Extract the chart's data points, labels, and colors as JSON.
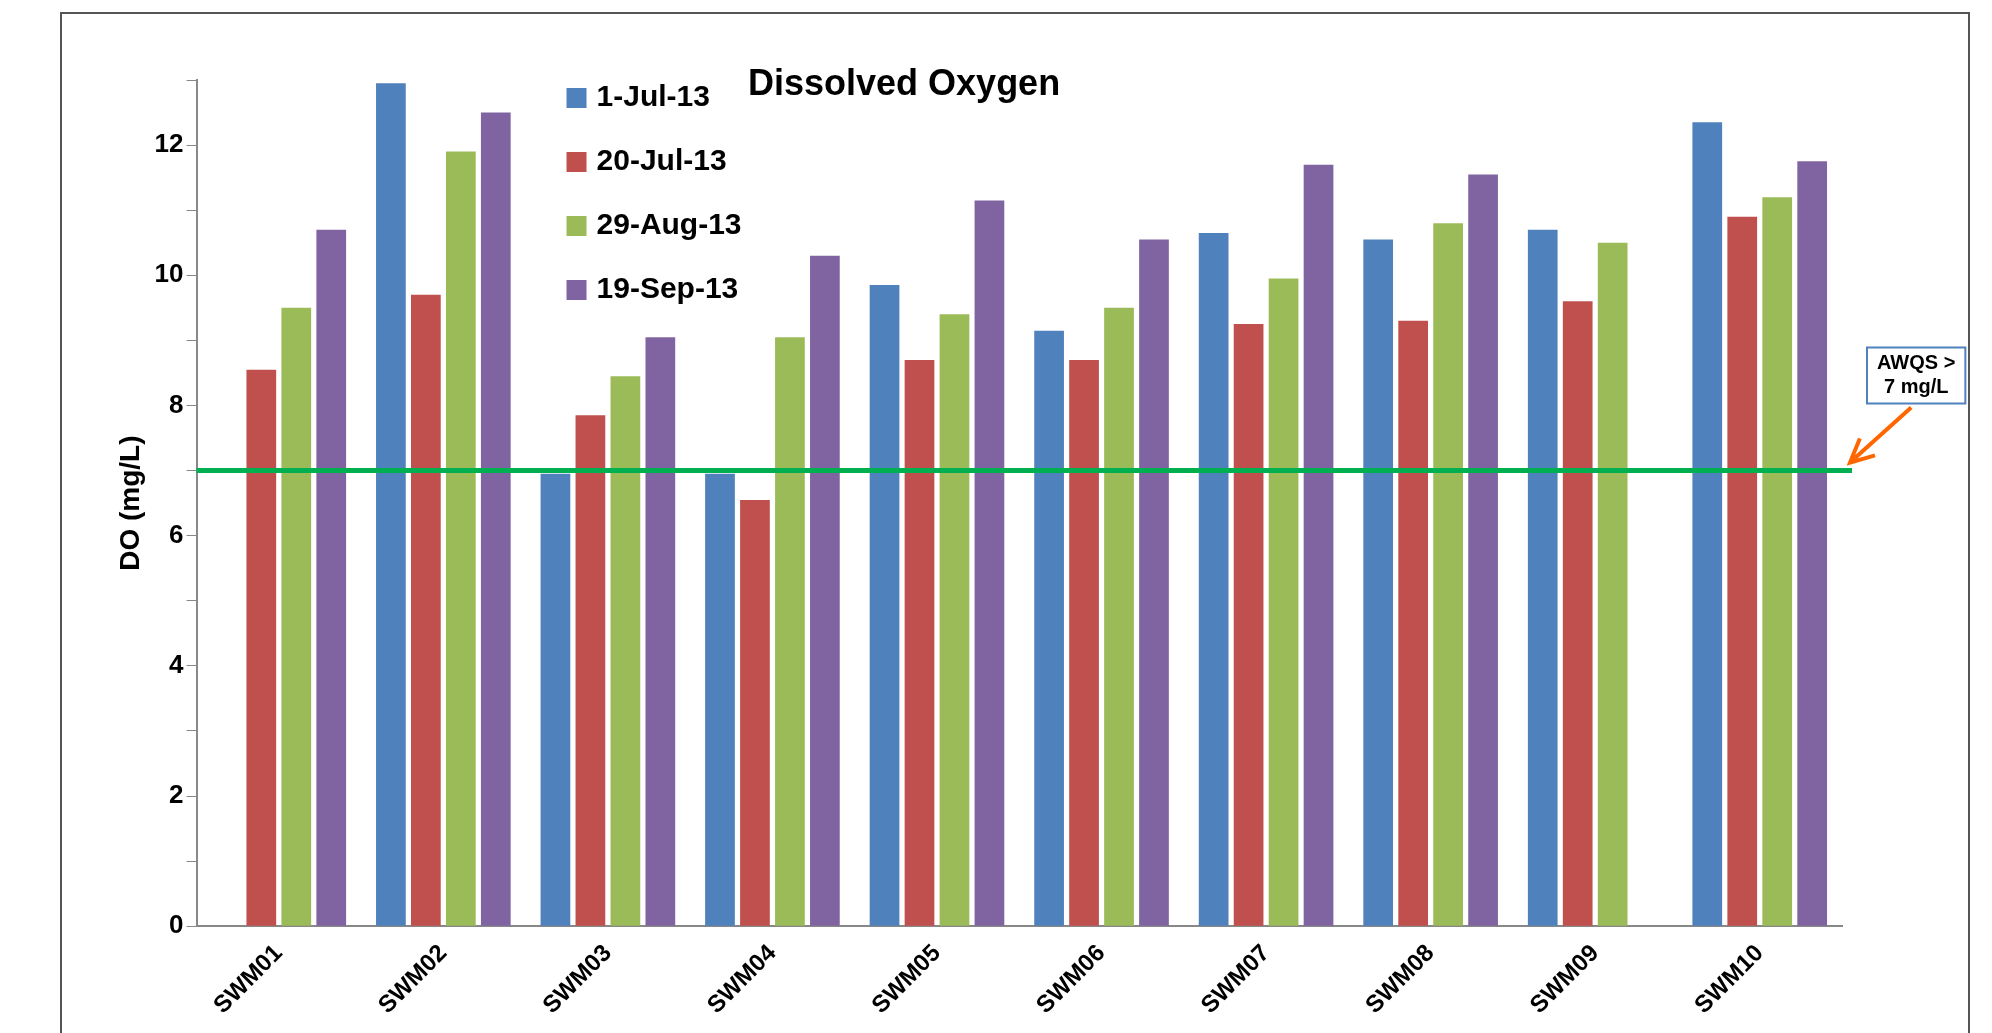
{
  "chart_data": {
    "type": "bar",
    "title": "Dissolved Oxygen",
    "ylabel": "DO (mg/L)",
    "categories": [
      "SWM01",
      "SWM02",
      "SWM03",
      "SWM04",
      "SWM05",
      "SWM06",
      "SWM07",
      "SWM08",
      "SWM09",
      "SWM10"
    ],
    "series": [
      {
        "name": "1-Jul-13",
        "color": "#4f81bd",
        "values": [
          null,
          12.95,
          6.95,
          6.95,
          9.85,
          9.15,
          10.65,
          10.55,
          10.7,
          12.35
        ]
      },
      {
        "name": "20-Jul-13",
        "color": "#c0504d",
        "values": [
          8.55,
          9.7,
          7.85,
          6.55,
          8.7,
          8.7,
          9.25,
          9.3,
          9.6,
          10.9
        ]
      },
      {
        "name": "29-Aug-13",
        "color": "#9bbb59",
        "values": [
          9.5,
          11.9,
          8.45,
          9.05,
          9.4,
          9.5,
          9.95,
          10.8,
          10.5,
          11.2
        ]
      },
      {
        "name": "19-Sep-13",
        "color": "#8064a2",
        "values": [
          10.7,
          12.5,
          9.05,
          10.3,
          11.15,
          10.55,
          11.7,
          11.55,
          null,
          11.75
        ]
      }
    ],
    "ylim": [
      0,
      13
    ],
    "yticks": [
      0,
      {
        "value": 1,
        "label": null
      },
      2,
      {
        "value": 3,
        "label": null
      },
      4,
      {
        "value": 5,
        "label": null
      },
      6,
      {
        "value": 7,
        "label": null
      },
      8,
      {
        "value": 9,
        "label": null
      },
      10,
      {
        "value": 11,
        "label": null
      },
      12,
      {
        "value": 13,
        "label": null
      }
    ],
    "ref_lines": [
      {
        "axis": "y",
        "value": 7,
        "label": "AWQS > 7 mg/L",
        "color": "#00b050"
      }
    ],
    "grid": false,
    "legend": "top left"
  }
}
